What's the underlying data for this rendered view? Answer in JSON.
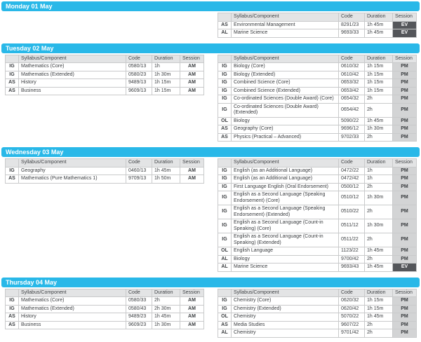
{
  "colors": {
    "day_bar": "#29b8e8",
    "header_bg": "#e3e4e5",
    "pm_session_bg": "#d3d4d5",
    "ev_session_bg": "#54565a",
    "border": "#c9cacb",
    "text": "#3a3d40"
  },
  "columns": {
    "qualification": "",
    "syllabus": "Syllabus/Component",
    "code": "Code",
    "duration": "Duration",
    "session": "Session"
  },
  "sections": [
    {
      "day": "Monday 01 May",
      "left": null,
      "right": [
        {
          "qual": "AS",
          "syllabus": "Environmental Management",
          "code": "8291/23",
          "duration": "1h 45m",
          "session": "EV"
        },
        {
          "qual": "AL",
          "syllabus": "Marine Science",
          "code": "9693/33",
          "duration": "1h 45m",
          "session": "EV"
        }
      ]
    },
    {
      "day": "Tuesday 02 May",
      "left": [
        {
          "qual": "IG",
          "syllabus": "Mathematics (Core)",
          "code": "0580/13",
          "duration": "1h",
          "session": "AM"
        },
        {
          "qual": "IG",
          "syllabus": "Mathematics (Extended)",
          "code": "0580/23",
          "duration": "1h 30m",
          "session": "AM"
        },
        {
          "qual": "AS",
          "syllabus": "History",
          "code": "9489/13",
          "duration": "1h 15m",
          "session": "AM"
        },
        {
          "qual": "AS",
          "syllabus": "Business",
          "code": "9609/13",
          "duration": "1h 15m",
          "session": "AM"
        }
      ],
      "right": [
        {
          "qual": "IG",
          "syllabus": "Biology (Core)",
          "code": "0610/32",
          "duration": "1h 15m",
          "session": "PM"
        },
        {
          "qual": "IG",
          "syllabus": "Biology (Extended)",
          "code": "0610/42",
          "duration": "1h 15m",
          "session": "PM"
        },
        {
          "qual": "IG",
          "syllabus": "Combined Science (Core)",
          "code": "0653/32",
          "duration": "1h 15m",
          "session": "PM"
        },
        {
          "qual": "IG",
          "syllabus": "Combined Science (Extended)",
          "code": "0653/42",
          "duration": "1h 15m",
          "session": "PM"
        },
        {
          "qual": "IG",
          "syllabus": "Co-ordinated Sciences (Double Award) (Core)",
          "code": "0654/32",
          "duration": "2h",
          "session": "PM"
        },
        {
          "qual": "IG",
          "syllabus": "Co-ordinated Sciences (Double Award) (Extended)",
          "code": "0654/42",
          "duration": "2h",
          "session": "PM"
        },
        {
          "qual": "OL",
          "syllabus": "Biology",
          "code": "5090/22",
          "duration": "1h 45m",
          "session": "PM"
        },
        {
          "qual": "AS",
          "syllabus": "Geography (Core)",
          "code": "9696/12",
          "duration": "1h 30m",
          "session": "PM"
        },
        {
          "qual": "AS",
          "syllabus": "Physics (Practical – Advanced)",
          "code": "9702/33",
          "duration": "2h",
          "session": "PM"
        }
      ]
    },
    {
      "day": "Wednesday 03 May",
      "left": [
        {
          "qual": "IG",
          "syllabus": "Geography",
          "code": "0460/13",
          "duration": "1h 45m",
          "session": "AM"
        },
        {
          "qual": "AS",
          "syllabus": "Mathematics (Pure Mathematics 1)",
          "code": "9709/13",
          "duration": "1h 50m",
          "session": "AM"
        }
      ],
      "right": [
        {
          "qual": "IG",
          "syllabus": "English (as an Additional Language)",
          "code": "0472/22",
          "duration": "1h",
          "session": "PM"
        },
        {
          "qual": "IG",
          "syllabus": "English (as an Additional Language)",
          "code": "0472/42",
          "duration": "1h",
          "session": "PM"
        },
        {
          "qual": "IG",
          "syllabus": "First Language English (Oral Endorsement)",
          "code": "0500/12",
          "duration": "2h",
          "session": "PM"
        },
        {
          "qual": "IG",
          "syllabus": "English as a Second Language (Speaking Endorsement) (Core)",
          "code": "0510/12",
          "duration": "1h 30m",
          "session": "PM"
        },
        {
          "qual": "IG",
          "syllabus": "English as a Second Language (Speaking Endorsement) (Extended)",
          "code": "0510/22",
          "duration": "2h",
          "session": "PM"
        },
        {
          "qual": "IG",
          "syllabus": "English as a Second Language (Count-in Speaking) (Core)",
          "code": "0511/12",
          "duration": "1h 30m",
          "session": "PM"
        },
        {
          "qual": "IG",
          "syllabus": "English as a Second Language (Count-in Speaking) (Extended)",
          "code": "0511/22",
          "duration": "2h",
          "session": "PM"
        },
        {
          "qual": "OL",
          "syllabus": "English Language",
          "code": "1123/22",
          "duration": "1h 45m",
          "session": "PM"
        },
        {
          "qual": "AL",
          "syllabus": "Biology",
          "code": "9700/42",
          "duration": "2h",
          "session": "PM"
        },
        {
          "qual": "AL",
          "syllabus": "Marine Science",
          "code": "9693/43",
          "duration": "1h 45m",
          "session": "EV"
        }
      ]
    },
    {
      "day": "Thursday 04 May",
      "left": [
        {
          "qual": "IG",
          "syllabus": "Mathematics (Core)",
          "code": "0580/33",
          "duration": "2h",
          "session": "AM"
        },
        {
          "qual": "IG",
          "syllabus": "Mathematics (Extended)",
          "code": "0580/43",
          "duration": "2h 30m",
          "session": "AM"
        },
        {
          "qual": "AS",
          "syllabus": "History",
          "code": "9489/23",
          "duration": "1h 45m",
          "session": "AM"
        },
        {
          "qual": "AS",
          "syllabus": "Business",
          "code": "9609/23",
          "duration": "1h 30m",
          "session": "AM"
        }
      ],
      "right": [
        {
          "qual": "IG",
          "syllabus": "Chemistry (Core)",
          "code": "0620/32",
          "duration": "1h 15m",
          "session": "PM"
        },
        {
          "qual": "IG",
          "syllabus": "Chemistry (Extended)",
          "code": "0620/42",
          "duration": "1h 15m",
          "session": "PM"
        },
        {
          "qual": "OL",
          "syllabus": "Chemistry",
          "code": "5070/22",
          "duration": "1h 45m",
          "session": "PM"
        },
        {
          "qual": "AS",
          "syllabus": "Media Studies",
          "code": "9607/22",
          "duration": "2h",
          "session": "PM"
        },
        {
          "qual": "AL",
          "syllabus": "Chemistry",
          "code": "9701/42",
          "duration": "2h",
          "session": "PM"
        }
      ]
    }
  ]
}
